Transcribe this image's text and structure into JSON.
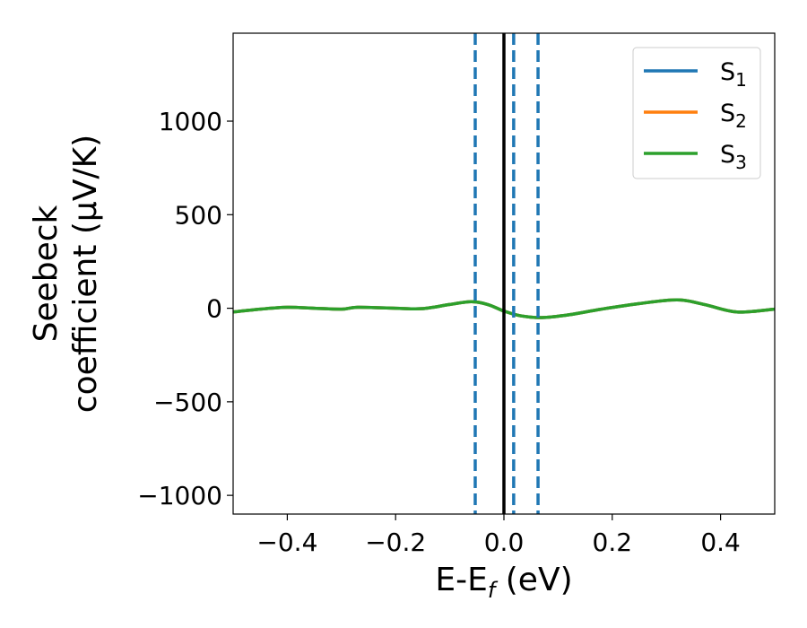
{
  "chart_data": {
    "type": "line",
    "title": "",
    "xlabel": {
      "main": "E-E",
      "sub": "f",
      "unit": " (eV)"
    },
    "ylabel": {
      "line1": "Seebeck",
      "line2": "coefficient  (μV/K)"
    },
    "xlim": [
      -0.5,
      0.5
    ],
    "ylim": [
      -1100,
      1470
    ],
    "xticks": [
      -0.4,
      -0.2,
      0.0,
      0.2,
      0.4
    ],
    "xtick_labels": [
      "−0.4",
      "−0.2",
      "0.0",
      "0.2",
      "0.4"
    ],
    "yticks": [
      -1000,
      -500,
      0,
      500,
      1000
    ],
    "ytick_labels": [
      "−1000",
      "−500",
      "0",
      "500",
      "1000"
    ],
    "grid": false,
    "legend": {
      "placement": "top-right",
      "entries": [
        {
          "main": "S",
          "sub": "1",
          "color": "#1f77b4"
        },
        {
          "main": "S",
          "sub": "2",
          "color": "#ff7f0e"
        },
        {
          "main": "S",
          "sub": "3",
          "color": "#2ca02c"
        }
      ]
    },
    "vlines": [
      {
        "x": 0.0,
        "color": "#000000",
        "style": "solid"
      },
      {
        "x": -0.053,
        "color": "#1f77b4",
        "style": "dashed"
      },
      {
        "x": 0.018,
        "color": "#1f77b4",
        "style": "dashed"
      },
      {
        "x": 0.063,
        "color": "#1f77b4",
        "style": "dashed"
      }
    ],
    "x": [
      -0.5,
      -0.45,
      -0.4,
      -0.35,
      -0.3,
      -0.27,
      -0.2,
      -0.15,
      -0.1,
      -0.06,
      -0.03,
      0.0,
      0.03,
      0.07,
      0.12,
      0.18,
      0.25,
      0.32,
      0.37,
      0.43,
      0.5
    ],
    "series": [
      {
        "name": "S₁",
        "color": "#1f77b4",
        "values": [
          -20,
          -5,
          5,
          0,
          -5,
          5,
          0,
          -2,
          20,
          35,
          20,
          -15,
          -40,
          -50,
          -35,
          -5,
          25,
          45,
          20,
          -20,
          -5
        ]
      },
      {
        "name": "S₂",
        "color": "#ff7f0e",
        "values": [
          -20,
          -5,
          5,
          0,
          -5,
          5,
          0,
          -2,
          20,
          35,
          20,
          -15,
          -40,
          -50,
          -35,
          -5,
          25,
          45,
          20,
          -20,
          -5
        ]
      },
      {
        "name": "S₃",
        "color": "#2ca02c",
        "values": [
          -20,
          -5,
          5,
          0,
          -5,
          5,
          0,
          -2,
          20,
          35,
          20,
          -15,
          -40,
          -50,
          -35,
          -5,
          25,
          45,
          20,
          -20,
          -5
        ]
      }
    ]
  }
}
